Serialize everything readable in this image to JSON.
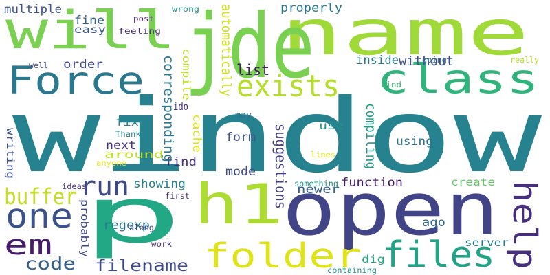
{
  "background": "#ffffff",
  "words": [
    {
      "text": "window",
      "color": "#26828e"
    },
    {
      "text": "p",
      "color": "#22a884"
    },
    {
      "text": "open",
      "color": "#414487"
    },
    {
      "text": "name",
      "color": "#a0da39"
    },
    {
      "text": "jde",
      "color": "#7ad151"
    },
    {
      "text": "will",
      "color": "#7ad151"
    },
    {
      "text": "h1",
      "color": "#addc30"
    },
    {
      "text": "folder",
      "color": "#dfe318"
    },
    {
      "text": "Force",
      "color": "#2a788e"
    },
    {
      "text": "class",
      "color": "#2fb47c"
    },
    {
      "text": "exists",
      "color": "#b5de2b"
    },
    {
      "text": "files",
      "color": "#20a386"
    },
    {
      "text": "one",
      "color": "#3b528b"
    },
    {
      "text": "em",
      "color": "#481b6d"
    },
    {
      "text": "help",
      "color": "#472f7d"
    },
    {
      "text": "run",
      "color": "#3e4989"
    },
    {
      "text": "buffer",
      "color": "#c2df23"
    },
    {
      "text": "code",
      "color": "#355f8d"
    },
    {
      "text": "filename",
      "color": "#3e4a89"
    },
    {
      "text": "list",
      "color": "#481b6d"
    },
    {
      "text": "properly",
      "color": "#2a788e"
    },
    {
      "text": "multiple",
      "color": "#3b528b"
    },
    {
      "text": "fine",
      "color": "#33638d"
    },
    {
      "text": "easy",
      "color": "#3b528b"
    },
    {
      "text": "inside",
      "color": "#2a788e"
    },
    {
      "text": "without",
      "color": "#3b528b"
    },
    {
      "text": "order",
      "color": "#3e4989"
    },
    {
      "text": "fix",
      "color": "#25848e"
    },
    {
      "text": "next",
      "color": "#46327e"
    },
    {
      "text": "around",
      "color": "#bddf26"
    },
    {
      "text": "find",
      "color": "#472d7b"
    },
    {
      "text": "use",
      "color": "#21918c"
    },
    {
      "text": "using",
      "color": "#2c728e"
    },
    {
      "text": "form",
      "color": "#3b528b"
    },
    {
      "text": "mode",
      "color": "#3e4989"
    },
    {
      "text": "newer",
      "color": "#355f8d"
    },
    {
      "text": "function",
      "color": "#481b6d"
    },
    {
      "text": "create",
      "color": "#5ec962"
    },
    {
      "text": "ago",
      "color": "#31688e"
    },
    {
      "text": "showing",
      "color": "#26828e"
    },
    {
      "text": "regexp",
      "color": "#2a788e"
    },
    {
      "text": "server",
      "color": "#2a788e"
    },
    {
      "text": "dig",
      "color": "#22a884"
    },
    {
      "text": "corresponding",
      "color": "#2a788e"
    },
    {
      "text": "automatically",
      "color": "#d0e11c"
    },
    {
      "text": "compile",
      "color": "#bddf26"
    },
    {
      "text": "compiling",
      "color": "#1f9a8a"
    },
    {
      "text": "suggestions",
      "color": "#433e85"
    },
    {
      "text": "cache",
      "color": "#dfe318"
    },
    {
      "text": "ido",
      "color": "#46327e"
    },
    {
      "text": "writing",
      "color": "#3b528b"
    },
    {
      "text": "probably",
      "color": "#3e4989"
    },
    {
      "text": "feeling",
      "color": "#472d7b"
    },
    {
      "text": "post",
      "color": "#481b6d"
    },
    {
      "text": "wrong",
      "color": "#21918c"
    },
    {
      "text": "well",
      "color": "#3e4989"
    },
    {
      "text": "going",
      "color": "#31688e"
    },
    {
      "text": "really",
      "color": "#b8de29"
    },
    {
      "text": "kind",
      "color": "#3aba76"
    },
    {
      "text": "may",
      "color": "#2d708e"
    },
    {
      "text": "Thanks",
      "color": "#26828e"
    },
    {
      "text": "anyone",
      "color": "#ece51b"
    },
    {
      "text": "lines",
      "color": "#dde318"
    },
    {
      "text": "something",
      "color": "#21918c"
    },
    {
      "text": "ideas",
      "color": "#46327e"
    },
    {
      "text": "first",
      "color": "#472d7b"
    },
    {
      "text": "along",
      "color": "#3e4989"
    },
    {
      "text": "work",
      "color": "#46327e"
    },
    {
      "text": "containing",
      "color": "#21918c"
    }
  ]
}
